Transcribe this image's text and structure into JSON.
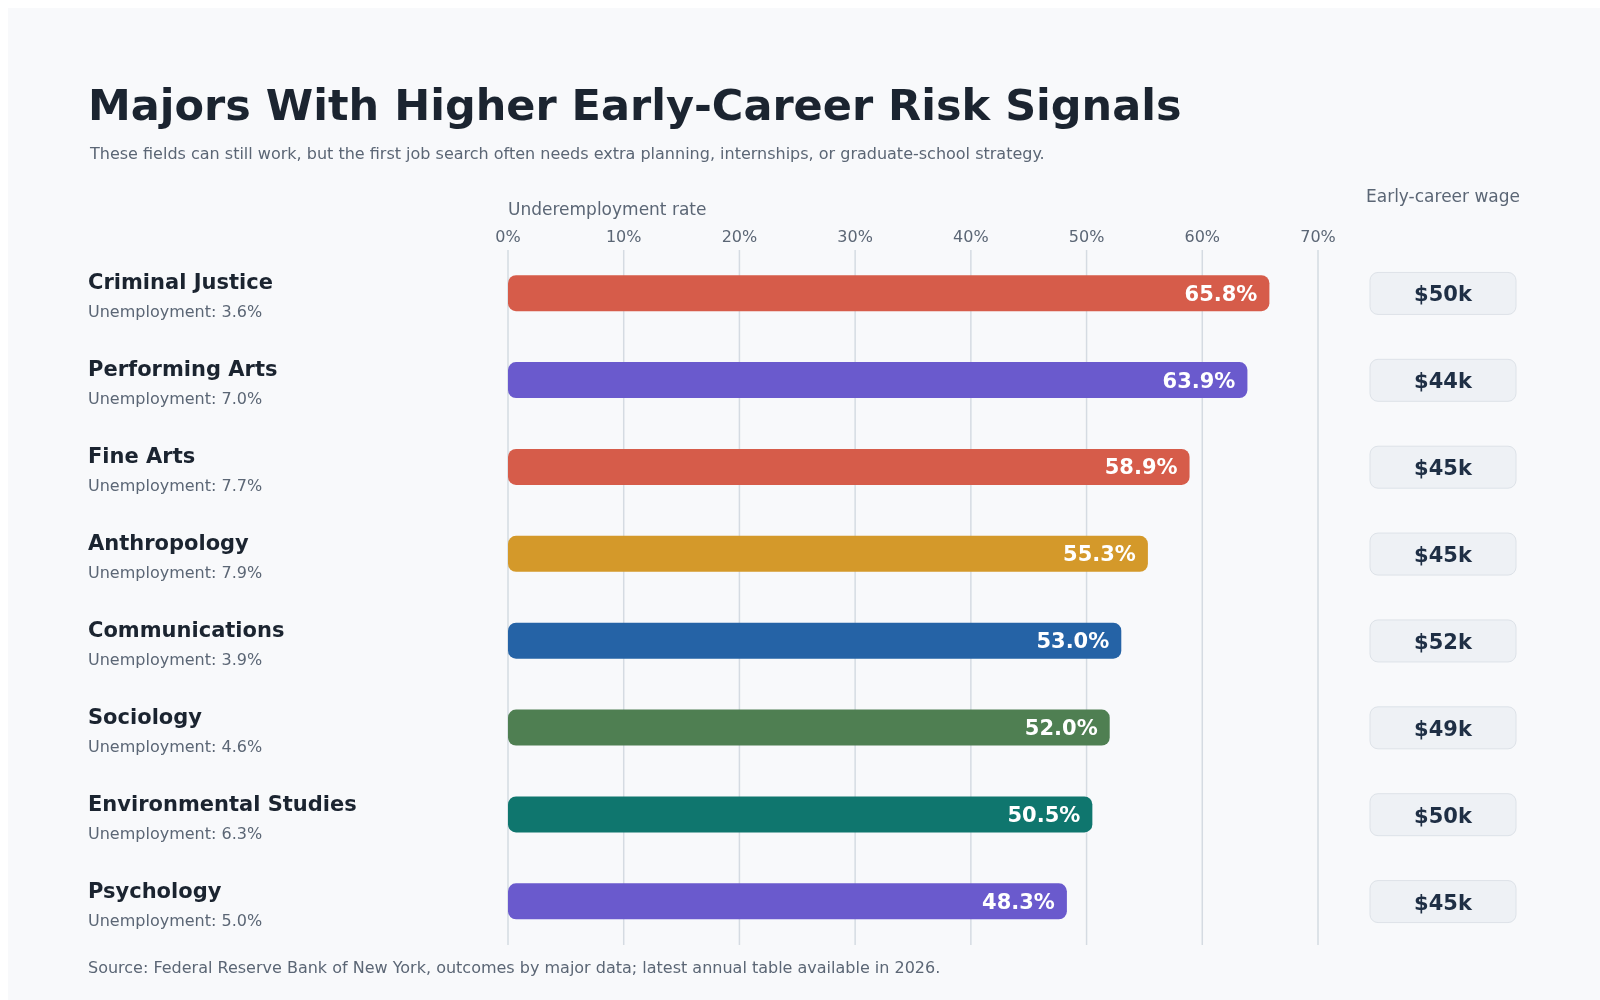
{
  "chart_data": {
    "type": "bar",
    "orientation": "horizontal",
    "title": "Majors With Higher Early-Career Risk Signals",
    "subtitle": "These fields can still work, but the first job search often needs extra planning, internships, or graduate-school strategy.",
    "xlabel": "Underemployment rate",
    "categories": [
      "Criminal Justice",
      "Performing Arts",
      "Fine Arts",
      "Anthropology",
      "Communications",
      "Sociology",
      "Environmental Studies",
      "Psychology"
    ],
    "values": [
      65.8,
      63.9,
      58.9,
      55.3,
      53.0,
      52.0,
      50.5,
      48.3
    ],
    "value_labels": [
      "65.8%",
      "63.9%",
      "58.9%",
      "55.3%",
      "53.0%",
      "52.0%",
      "50.5%",
      "48.3%"
    ],
    "colors": [
      "#d65c4a",
      "#6a5acd",
      "#d65c4a",
      "#d4992a",
      "#2563a6",
      "#4f7f52",
      "#0f766e",
      "#6a5acd"
    ],
    "xlim": [
      0,
      70
    ],
    "xticks": [
      {
        "value": 0,
        "label": "0%"
      },
      {
        "value": 10,
        "label": "10%"
      },
      {
        "value": 20,
        "label": "20%"
      },
      {
        "value": 30,
        "label": "30%"
      },
      {
        "value": 40,
        "label": "40%"
      },
      {
        "value": 50,
        "label": "50%"
      },
      {
        "value": 60,
        "label": "60%"
      },
      {
        "value": 70,
        "label": "70%"
      }
    ],
    "grid": "x",
    "annotations": [
      "Early-career wage",
      "Unemployment: 3.6%",
      "Unemployment: 7.0%",
      "Unemployment: 7.7%",
      "Unemployment: 7.9%",
      "Unemployment: 3.9%",
      "Unemployment: 4.6%",
      "Unemployment: 6.3%",
      "Unemployment: 5.0%",
      "$50k",
      "$44k",
      "$45k",
      "$45k",
      "$52k",
      "$49k",
      "$50k",
      "$45k",
      "Source: Federal Reserve Bank of New York, outcomes by major data; latest annual table available in 2026."
    ]
  }
}
